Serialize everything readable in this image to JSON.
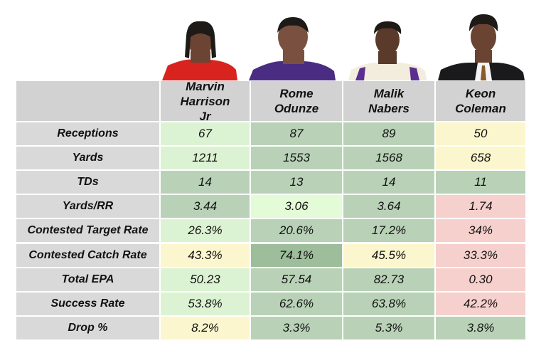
{
  "table": {
    "header": [
      "Marvin Harrison Jr",
      "Rome Odunze",
      "Malik Nabers",
      "Keon Coleman"
    ],
    "rows": [
      [
        "Receptions",
        "67",
        "87",
        "89",
        "50"
      ],
      [
        "Yards",
        "1211",
        "1553",
        "1568",
        "658"
      ],
      [
        "TDs",
        "14",
        "13",
        "14",
        "11"
      ],
      [
        "Yards/RR",
        "3.44",
        "3.06",
        "3.64",
        "1.74"
      ],
      [
        "Contested Target Rate",
        "26.3%",
        "20.6%",
        "17.2%",
        "34%"
      ],
      [
        "Contested Catch Rate",
        "43.3%",
        "74.1%",
        "45.5%",
        "33.3%"
      ],
      [
        "Total EPA",
        "50.23",
        "57.54",
        "82.73",
        "0.30"
      ],
      [
        "Success Rate",
        "53.8%",
        "62.6%",
        "63.8%",
        "42.2%"
      ],
      [
        "Drop %",
        "8.2%",
        "3.3%",
        "5.3%",
        "3.8%"
      ]
    ],
    "cell_colors": [
      [
        "#dcf3d3",
        "#b9d2b7",
        "#b9d2b7",
        "#fbf6cd"
      ],
      [
        "#dcf3d3",
        "#b9d2b7",
        "#b9d2b7",
        "#fbf6cd"
      ],
      [
        "#b9d2b7",
        "#b9d2b7",
        "#b9d2b7",
        "#b9d2b7"
      ],
      [
        "#b9d2b7",
        "#e4fbd8",
        "#b9d2b7",
        "#f6d0cd"
      ],
      [
        "#dcf3d3",
        "#b9d2b7",
        "#b9d2b7",
        "#f6d0cd"
      ],
      [
        "#fbf6cd",
        "#9dbd9b",
        "#fbf6cd",
        "#f6d0cd"
      ],
      [
        "#dcf3d3",
        "#b9d2b7",
        "#b9d2b7",
        "#f6d0cd"
      ],
      [
        "#dcf3d3",
        "#b9d2b7",
        "#b9d2b7",
        "#f6d0cd"
      ],
      [
        "#fbf6cd",
        "#b9d2b7",
        "#b9d2b7",
        "#b9d2b7"
      ]
    ]
  }
}
